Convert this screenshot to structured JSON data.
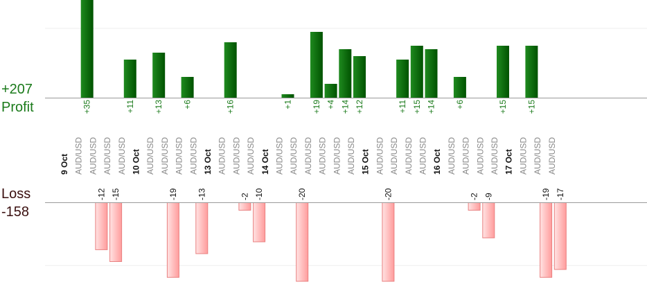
{
  "summary": {
    "profit_total": "+207",
    "profit_label": "Profit",
    "loss_label": "Loss",
    "loss_total": "-158"
  },
  "colors": {
    "profit_bar_light": "#1f8a1f",
    "profit_bar_dark": "#005200",
    "loss_bar_light": "#ffe3e3",
    "loss_bar_dark": "#ff9c9c",
    "loss_bar_stroke": "#e98080",
    "axis": "#999999",
    "grid": "#eeeeee"
  },
  "chart_data": {
    "type": "bar",
    "slots": [
      {
        "kind": "date",
        "label": "9 Oct"
      },
      {
        "kind": "trade",
        "symbol": "AUD/USD",
        "value": 35,
        "label": "+35"
      },
      {
        "kind": "trade",
        "symbol": "AUD/USD",
        "value": -12,
        "label": "-12"
      },
      {
        "kind": "trade",
        "symbol": "AUD/USD",
        "value": -15,
        "label": "-15"
      },
      {
        "kind": "trade",
        "symbol": "AUD/USD",
        "value": 11,
        "label": "+11"
      },
      {
        "kind": "date",
        "label": "10 Oct"
      },
      {
        "kind": "trade",
        "symbol": "AUD/USD",
        "value": 13,
        "label": "+13"
      },
      {
        "kind": "trade",
        "symbol": "AUD/USD",
        "value": -19,
        "label": "-19"
      },
      {
        "kind": "trade",
        "symbol": "AUD/USD",
        "value": 6,
        "label": "+6"
      },
      {
        "kind": "trade",
        "symbol": "AUD/USD",
        "value": -13,
        "label": "-13"
      },
      {
        "kind": "date",
        "label": "13 Oct"
      },
      {
        "kind": "trade",
        "symbol": "AUD/USD",
        "value": 16,
        "label": "+16"
      },
      {
        "kind": "trade",
        "symbol": "AUD/USD",
        "value": -2,
        "label": "-2"
      },
      {
        "kind": "trade",
        "symbol": "AUD/USD",
        "value": -10,
        "label": "-10"
      },
      {
        "kind": "date",
        "label": "14 Oct"
      },
      {
        "kind": "trade",
        "symbol": "AUD/USD",
        "value": 1,
        "label": "+1"
      },
      {
        "kind": "trade",
        "symbol": "AUD/USD",
        "value": -20,
        "label": "-20"
      },
      {
        "kind": "trade",
        "symbol": "AUD/USD",
        "value": 19,
        "label": "+19"
      },
      {
        "kind": "trade",
        "symbol": "AUD/USD",
        "value": 4,
        "label": "+4"
      },
      {
        "kind": "trade",
        "symbol": "AUD/USD",
        "value": 14,
        "label": "+14"
      },
      {
        "kind": "trade",
        "symbol": "AUD/USD",
        "value": 12,
        "label": "+12"
      },
      {
        "kind": "date",
        "label": "15 Oct"
      },
      {
        "kind": "trade",
        "symbol": "AUD/USD",
        "value": -20,
        "label": "-20"
      },
      {
        "kind": "trade",
        "symbol": "AUD/USD",
        "value": 11,
        "label": "+11"
      },
      {
        "kind": "trade",
        "symbol": "AUD/USD",
        "value": 15,
        "label": "+15"
      },
      {
        "kind": "trade",
        "symbol": "AUD/USD",
        "value": 14,
        "label": "+14"
      },
      {
        "kind": "date",
        "label": "16 Oct"
      },
      {
        "kind": "trade",
        "symbol": "AUD/USD",
        "value": 6,
        "label": "+6"
      },
      {
        "kind": "trade",
        "symbol": "AUD/USD",
        "value": -2,
        "label": "-2"
      },
      {
        "kind": "trade",
        "symbol": "AUD/USD",
        "value": -9,
        "label": "-9"
      },
      {
        "kind": "trade",
        "symbol": "AUD/USD",
        "value": 15,
        "label": "+15"
      },
      {
        "kind": "date",
        "label": "17 Oct"
      },
      {
        "kind": "trade",
        "symbol": "AUD/USD",
        "value": 15,
        "label": "+15"
      },
      {
        "kind": "trade",
        "symbol": "AUD/USD",
        "value": -19,
        "label": "-19"
      },
      {
        "kind": "trade",
        "symbol": "AUD/USD",
        "value": -17,
        "label": "-17"
      }
    ]
  }
}
